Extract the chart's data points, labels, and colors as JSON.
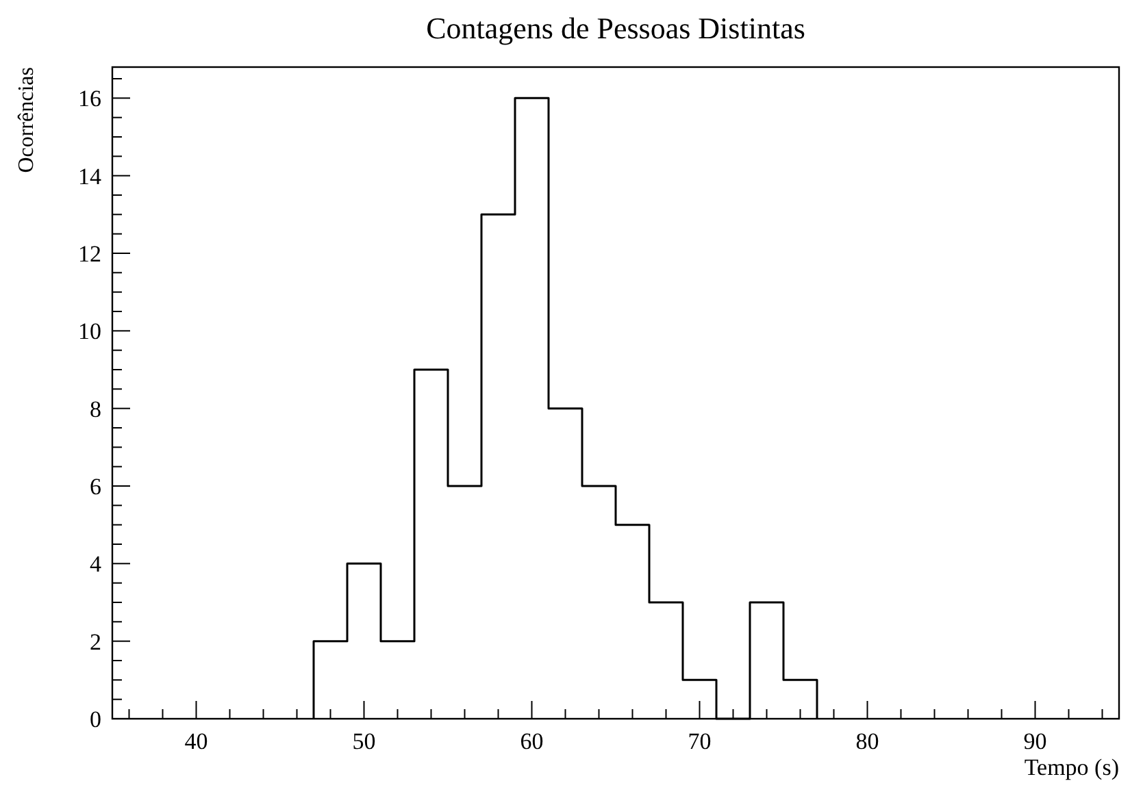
{
  "chart_data": {
    "type": "histogram",
    "title": "Contagens de Pessoas Distintas",
    "xlabel": "Tempo (s)",
    "ylabel": "Ocorrências",
    "bins": [
      47,
      49,
      51,
      53,
      55,
      57,
      59,
      61,
      63,
      65,
      67,
      69,
      71,
      73,
      75,
      77
    ],
    "values": [
      2,
      4,
      2,
      9,
      6,
      13,
      16,
      8,
      6,
      5,
      3,
      1,
      0,
      3,
      1
    ],
    "color": "#000000",
    "xlim": [
      35,
      95
    ],
    "xticks": [
      {
        "value": 36,
        "label": null
      },
      {
        "value": 38,
        "label": null
      },
      40,
      {
        "value": 42,
        "label": null
      },
      {
        "value": 44,
        "label": null
      },
      {
        "value": 46,
        "label": null
      },
      {
        "value": 48,
        "label": null
      },
      50,
      {
        "value": 52,
        "label": null
      },
      {
        "value": 54,
        "label": null
      },
      {
        "value": 56,
        "label": null
      },
      {
        "value": 58,
        "label": null
      },
      60,
      {
        "value": 62,
        "label": null
      },
      {
        "value": 64,
        "label": null
      },
      {
        "value": 66,
        "label": null
      },
      {
        "value": 68,
        "label": null
      },
      70,
      {
        "value": 72,
        "label": null
      },
      {
        "value": 74,
        "label": null
      },
      {
        "value": 76,
        "label": null
      },
      {
        "value": 78,
        "label": null
      },
      80,
      {
        "value": 82,
        "label": null
      },
      {
        "value": 84,
        "label": null
      },
      {
        "value": 86,
        "label": null
      },
      {
        "value": 88,
        "label": null
      },
      90,
      {
        "value": 92,
        "label": null
      },
      {
        "value": 94,
        "label": null
      }
    ],
    "ylim": [
      0,
      16.8
    ],
    "yticks": [
      0,
      {
        "value": 0.5,
        "label": null
      },
      {
        "value": 1,
        "label": null
      },
      {
        "value": 1.5,
        "label": null
      },
      2,
      {
        "value": 2.5,
        "label": null
      },
      {
        "value": 3,
        "label": null
      },
      {
        "value": 3.5,
        "label": null
      },
      4,
      {
        "value": 4.5,
        "label": null
      },
      {
        "value": 5,
        "label": null
      },
      {
        "value": 5.5,
        "label": null
      },
      6,
      {
        "value": 6.5,
        "label": null
      },
      {
        "value": 7,
        "label": null
      },
      {
        "value": 7.5,
        "label": null
      },
      8,
      {
        "value": 8.5,
        "label": null
      },
      {
        "value": 9,
        "label": null
      },
      {
        "value": 9.5,
        "label": null
      },
      10,
      {
        "value": 10.5,
        "label": null
      },
      {
        "value": 11,
        "label": null
      },
      {
        "value": 11.5,
        "label": null
      },
      12,
      {
        "value": 12.5,
        "label": null
      },
      {
        "value": 13,
        "label": null
      },
      {
        "value": 13.5,
        "label": null
      },
      14,
      {
        "value": 14.5,
        "label": null
      },
      {
        "value": 15,
        "label": null
      },
      {
        "value": 15.5,
        "label": null
      },
      16,
      {
        "value": 16.5,
        "label": null
      }
    ]
  }
}
